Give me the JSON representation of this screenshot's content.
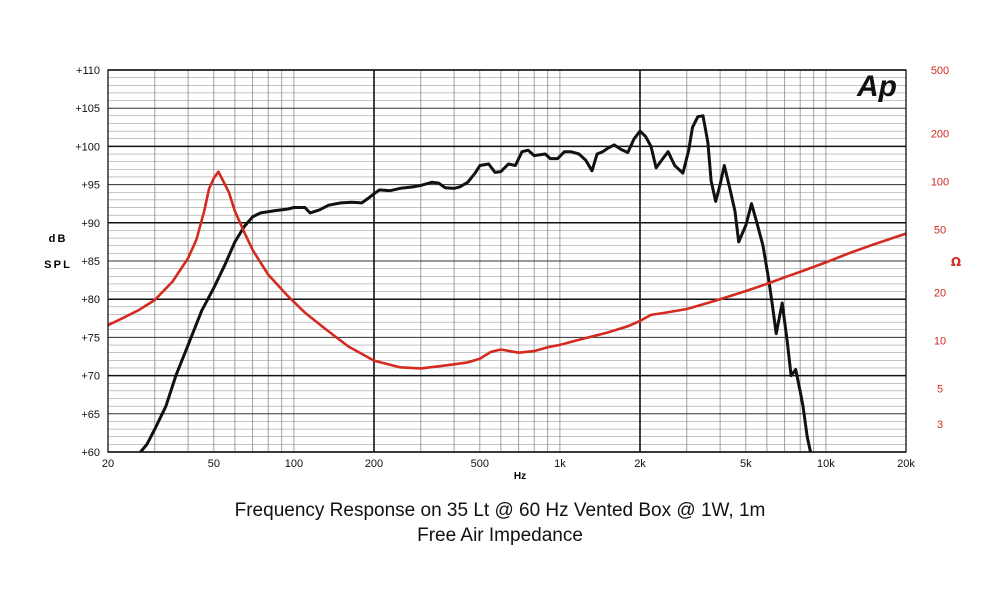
{
  "chart_data": {
    "type": "line",
    "logo": "Ap",
    "x_scale": "log",
    "xlim": [
      20,
      20000
    ],
    "xlabel": "Hz",
    "x_ticks": [
      {
        "value": 20,
        "label": "20"
      },
      {
        "value": 50,
        "label": "50"
      },
      {
        "value": 100,
        "label": "100"
      },
      {
        "value": 200,
        "label": "200"
      },
      {
        "value": 500,
        "label": "500"
      },
      {
        "value": 1000,
        "label": "1k"
      },
      {
        "value": 2000,
        "label": "2k"
      },
      {
        "value": 5000,
        "label": "5k"
      },
      {
        "value": 10000,
        "label": "10k"
      },
      {
        "value": 20000,
        "label": "20k"
      }
    ],
    "y_left": {
      "ylabel_lines": [
        "dB",
        "SPL"
      ],
      "ylim": [
        60,
        110
      ],
      "ticks": [
        {
          "value": 110,
          "label": "+110"
        },
        {
          "value": 105,
          "label": "+105"
        },
        {
          "value": 100,
          "label": "+100"
        },
        {
          "value": 95,
          "label": "+95"
        },
        {
          "value": 90,
          "label": "+90"
        },
        {
          "value": 85,
          "label": "+85"
        },
        {
          "value": 80,
          "label": "+80"
        },
        {
          "value": 75,
          "label": "+75"
        },
        {
          "value": 70,
          "label": "+70"
        },
        {
          "value": 65,
          "label": "+65"
        },
        {
          "value": 60,
          "label": "+60"
        }
      ]
    },
    "y_right": {
      "ylabel": "Ω",
      "scale": "log",
      "ylim": [
        2,
        500
      ],
      "color": "#d42a20",
      "ticks": [
        {
          "value": 500,
          "label": "500"
        },
        {
          "value": 200,
          "label": "200"
        },
        {
          "value": 100,
          "label": "100"
        },
        {
          "value": 50,
          "label": "50"
        },
        {
          "value": 20,
          "label": "20"
        },
        {
          "value": 10,
          "label": "10"
        },
        {
          "value": 5,
          "label": "5"
        },
        {
          "value": 3,
          "label": "3"
        }
      ]
    },
    "grid": true,
    "series": [
      {
        "axis": "left",
        "color": "#111111",
        "points": [
          [
            26.5,
            60
          ],
          [
            28,
            61
          ],
          [
            30,
            63
          ],
          [
            33,
            66
          ],
          [
            36,
            70
          ],
          [
            40,
            74
          ],
          [
            45,
            78.5
          ],
          [
            50,
            81.5
          ],
          [
            55,
            84.5
          ],
          [
            60,
            87.5
          ],
          [
            65,
            89.5
          ],
          [
            70,
            90.8
          ],
          [
            75,
            91.3
          ],
          [
            85,
            91.6
          ],
          [
            95,
            91.8
          ],
          [
            100,
            92
          ],
          [
            110,
            92
          ],
          [
            115,
            91.3
          ],
          [
            125,
            91.7
          ],
          [
            135,
            92.3
          ],
          [
            150,
            92.6
          ],
          [
            165,
            92.7
          ],
          [
            180,
            92.6
          ],
          [
            190,
            93.2
          ],
          [
            200,
            93.8
          ],
          [
            210,
            94.3
          ],
          [
            230,
            94.2
          ],
          [
            250,
            94.5
          ],
          [
            280,
            94.7
          ],
          [
            300,
            94.9
          ],
          [
            330,
            95.3
          ],
          [
            350,
            95.2
          ],
          [
            370,
            94.6
          ],
          [
            400,
            94.5
          ],
          [
            420,
            94.7
          ],
          [
            450,
            95.3
          ],
          [
            480,
            96.5
          ],
          [
            500,
            97.5
          ],
          [
            540,
            97.7
          ],
          [
            570,
            96.6
          ],
          [
            600,
            96.7
          ],
          [
            640,
            97.7
          ],
          [
            680,
            97.5
          ],
          [
            720,
            99.3
          ],
          [
            760,
            99.5
          ],
          [
            800,
            98.8
          ],
          [
            880,
            99
          ],
          [
            920,
            98.4
          ],
          [
            980,
            98.4
          ],
          [
            1040,
            99.3
          ],
          [
            1100,
            99.3
          ],
          [
            1180,
            99
          ],
          [
            1250,
            98.2
          ],
          [
            1320,
            96.8
          ],
          [
            1380,
            99
          ],
          [
            1450,
            99.3
          ],
          [
            1520,
            99.8
          ],
          [
            1600,
            100.2
          ],
          [
            1700,
            99.6
          ],
          [
            1800,
            99.2
          ],
          [
            1900,
            101
          ],
          [
            2000,
            102
          ],
          [
            2100,
            101.3
          ],
          [
            2200,
            100
          ],
          [
            2300,
            97.2
          ],
          [
            2450,
            98.5
          ],
          [
            2550,
            99.3
          ],
          [
            2700,
            97.5
          ],
          [
            2900,
            96.5
          ],
          [
            3050,
            99.5
          ],
          [
            3150,
            102.5
          ],
          [
            3300,
            103.9
          ],
          [
            3450,
            104
          ],
          [
            3600,
            100.5
          ],
          [
            3700,
            95.5
          ],
          [
            3850,
            92.8
          ],
          [
            4000,
            95
          ],
          [
            4150,
            97.5
          ],
          [
            4350,
            94.5
          ],
          [
            4550,
            91.5
          ],
          [
            4700,
            87.5
          ],
          [
            5000,
            89.7
          ],
          [
            5250,
            92.5
          ],
          [
            5500,
            90
          ],
          [
            5800,
            87
          ],
          [
            6100,
            82.5
          ],
          [
            6300,
            79
          ],
          [
            6500,
            75.5
          ],
          [
            6850,
            79.5
          ],
          [
            7150,
            74.5
          ],
          [
            7400,
            70
          ],
          [
            7700,
            70.8
          ],
          [
            8000,
            68
          ],
          [
            8200,
            66
          ],
          [
            8500,
            62
          ],
          [
            8750,
            60
          ]
        ]
      },
      {
        "axis": "right",
        "color": "#d42a20",
        "points": [
          [
            20,
            12.5
          ],
          [
            23,
            14
          ],
          [
            26,
            15.5
          ],
          [
            30,
            18
          ],
          [
            35,
            23.5
          ],
          [
            40,
            33
          ],
          [
            43,
            43
          ],
          [
            46,
            65
          ],
          [
            48,
            90
          ],
          [
            50,
            105
          ],
          [
            52,
            115
          ],
          [
            54,
            102
          ],
          [
            57,
            85
          ],
          [
            60,
            65
          ],
          [
            65,
            48
          ],
          [
            70,
            37
          ],
          [
            80,
            26
          ],
          [
            95,
            19
          ],
          [
            110,
            15
          ],
          [
            130,
            12
          ],
          [
            160,
            9.2
          ],
          [
            200,
            7.5
          ],
          [
            250,
            6.8
          ],
          [
            300,
            6.7
          ],
          [
            350,
            6.9
          ],
          [
            400,
            7.1
          ],
          [
            450,
            7.3
          ],
          [
            500,
            7.7
          ],
          [
            550,
            8.5
          ],
          [
            600,
            8.8
          ],
          [
            700,
            8.4
          ],
          [
            800,
            8.6
          ],
          [
            900,
            9.1
          ],
          [
            1000,
            9.4
          ],
          [
            1200,
            10.2
          ],
          [
            1500,
            11.2
          ],
          [
            1800,
            12.3
          ],
          [
            2000,
            13.3
          ],
          [
            2200,
            14.5
          ],
          [
            2500,
            15
          ],
          [
            3000,
            15.8
          ],
          [
            3500,
            17
          ],
          [
            4000,
            18.2
          ],
          [
            5000,
            20.5
          ],
          [
            6000,
            22.7
          ],
          [
            7000,
            25
          ],
          [
            8000,
            27
          ],
          [
            10000,
            31
          ],
          [
            12000,
            35
          ],
          [
            15000,
            40
          ],
          [
            20000,
            47
          ]
        ]
      }
    ]
  },
  "captions": {
    "line1": "Frequency Response on 35 Lt @ 60 Hz Vented Box @ 1W, 1m",
    "line2": "Free Air Impedance"
  }
}
